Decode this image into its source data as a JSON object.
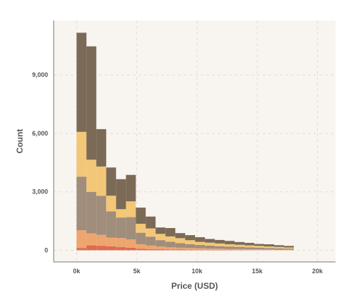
{
  "chart_data": {
    "type": "bar",
    "subtype": "stacked-histogram",
    "title": "",
    "xlabel": "Price (USD)",
    "ylabel": "Count",
    "xlim": [
      -1900,
      21500
    ],
    "ylim": [
      -600,
      11800
    ],
    "x_ticks": [
      0,
      5000,
      10000,
      15000,
      20000
    ],
    "x_tick_labels": [
      "0k",
      "5k",
      "10k",
      "15k",
      "20k"
    ],
    "y_ticks": [
      0,
      3000,
      6000,
      9000
    ],
    "y_tick_labels": [
      "0",
      "3,000",
      "6,000",
      "9,000"
    ],
    "grid": true,
    "legend": "none",
    "background": "#f8f5f0",
    "bin_edges": [
      0,
      820,
      1640,
      2460,
      3280,
      4100,
      4920,
      5740,
      6560,
      7380,
      8200,
      9020,
      9840,
      10660,
      11480,
      12300,
      13120,
      13940,
      14760,
      15580,
      16400,
      17220,
      18040
    ],
    "series": [
      {
        "color": "#de6b50",
        "values": [
          120,
          250,
          230,
          200,
          160,
          130,
          80,
          60,
          50,
          40,
          35,
          30,
          25,
          20,
          18,
          15,
          12,
          10,
          8,
          6,
          5,
          4
        ]
      },
      {
        "color": "#eea56e",
        "values": [
          910,
          620,
          560,
          450,
          470,
          430,
          230,
          180,
          140,
          110,
          95,
          85,
          75,
          70,
          60,
          55,
          50,
          45,
          40,
          35,
          30,
          25
        ]
      },
      {
        "color": "#a08d7b",
        "values": [
          2750,
          2130,
          2010,
          1350,
          1050,
          1140,
          590,
          460,
          330,
          290,
          240,
          200,
          170,
          150,
          130,
          120,
          110,
          95,
          85,
          75,
          65,
          55
        ]
      },
      {
        "color": "#f3c777",
        "values": [
          2300,
          1650,
          1500,
          800,
          430,
          810,
          460,
          420,
          320,
          270,
          250,
          200,
          160,
          150,
          140,
          120,
          110,
          100,
          90,
          80,
          70,
          60
        ]
      },
      {
        "color": "#7b6a56",
        "values": [
          5090,
          5820,
          1920,
          1450,
          1540,
          1360,
          830,
          610,
          330,
          430,
          260,
          260,
          240,
          190,
          180,
          170,
          140,
          130,
          100,
          110,
          90,
          80
        ]
      }
    ]
  }
}
